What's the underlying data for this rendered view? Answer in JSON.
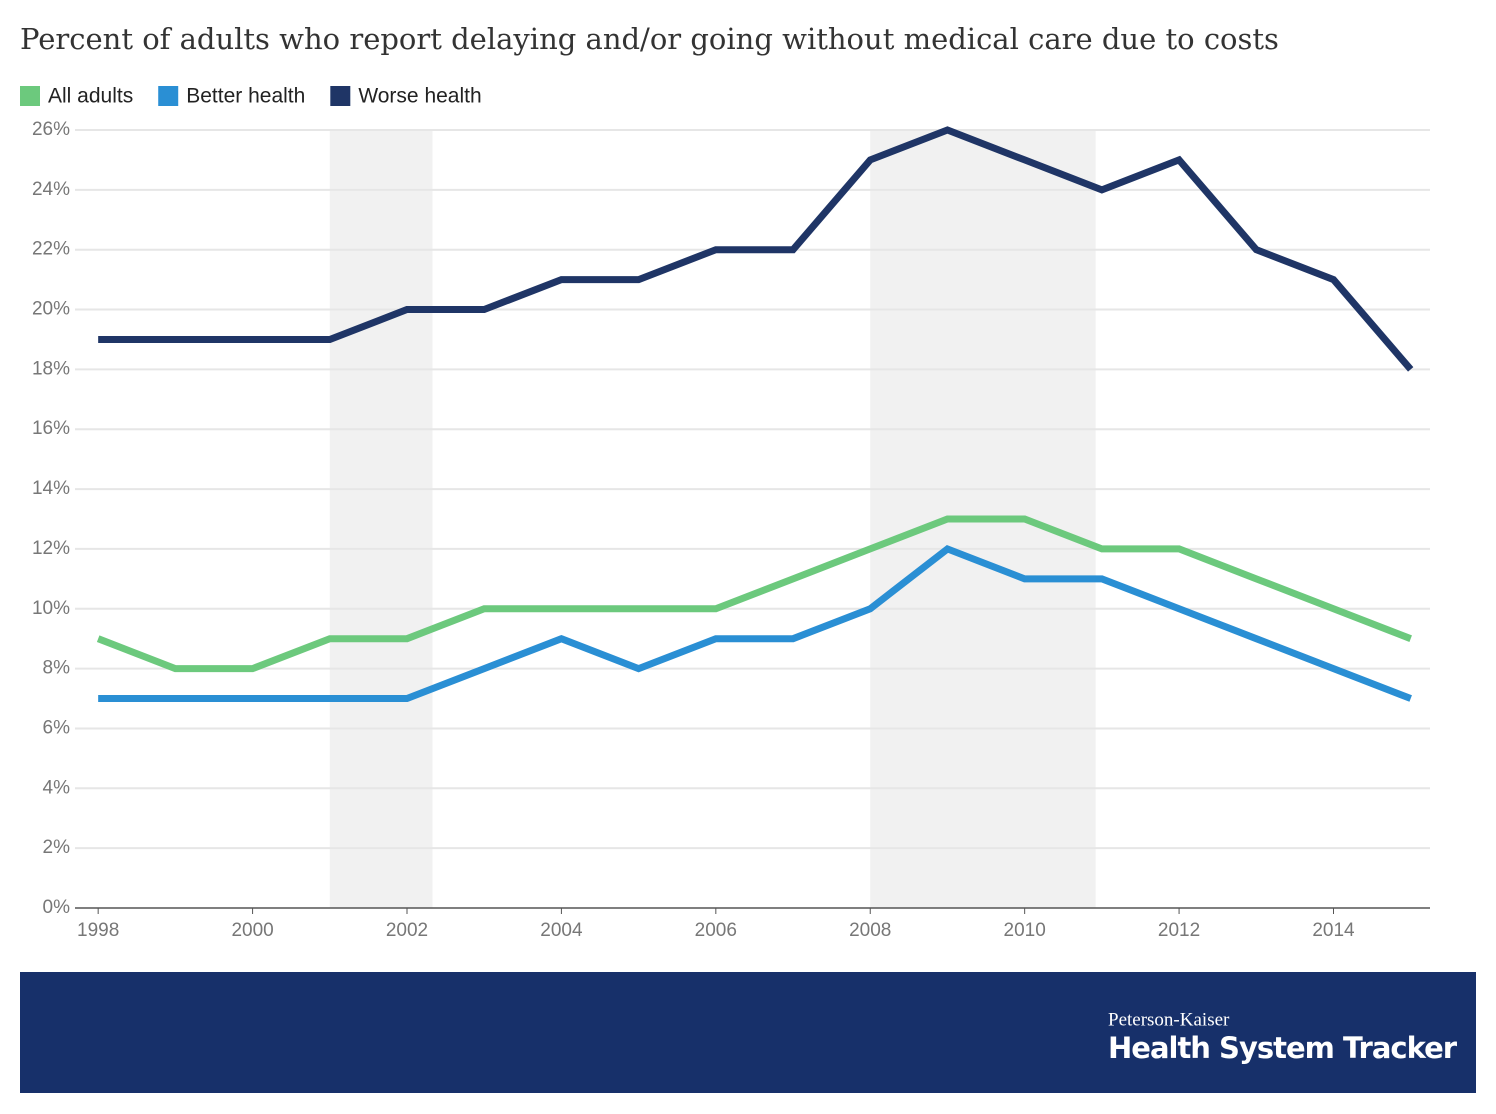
{
  "chart_data": {
    "type": "line",
    "title": "Percent of adults who report delaying and/or going without medical care due to costs",
    "x": [
      1998,
      1999,
      2000,
      2001,
      2002,
      2003,
      2004,
      2005,
      2006,
      2007,
      2008,
      2009,
      2010,
      2011,
      2012,
      2013,
      2014,
      2015
    ],
    "series": [
      {
        "name": "All adults",
        "color": "#6cc97d",
        "values": [
          9,
          8,
          8,
          9,
          9,
          10,
          10,
          10,
          10,
          11,
          12,
          13,
          13,
          12,
          12,
          11,
          10,
          9
        ]
      },
      {
        "name": "Better health",
        "color": "#2a8fd4",
        "values": [
          7,
          7,
          7,
          7,
          7,
          8,
          9,
          8,
          9,
          9,
          10,
          12,
          11,
          11,
          10,
          9,
          8,
          7
        ]
      },
      {
        "name": "Worse health",
        "color": "#1f3566",
        "values": [
          19,
          19,
          19,
          19,
          20,
          20,
          21,
          21,
          22,
          22,
          25,
          26,
          25,
          24,
          25,
          22,
          21,
          18
        ]
      }
    ],
    "shaded_spans": [
      [
        2001,
        2002.33
      ],
      [
        2008,
        2010.92
      ]
    ],
    "xlim": [
      1997.7,
      2015.25
    ],
    "xticks": [
      1998,
      2000,
      2002,
      2004,
      2006,
      2008,
      2010,
      2012,
      2014
    ],
    "ylim": [
      0,
      26
    ],
    "yticks": [
      {
        "value": 0,
        "label": "0%"
      },
      {
        "value": 2,
        "label": "2%"
      },
      {
        "value": 4,
        "label": "4%"
      },
      {
        "value": 6,
        "label": "6%"
      },
      {
        "value": 8,
        "label": "8%"
      },
      {
        "value": 10,
        "label": "10%"
      },
      {
        "value": 12,
        "label": "12%"
      },
      {
        "value": 14,
        "label": "14%"
      },
      {
        "value": 16,
        "label": "16%"
      },
      {
        "value": 18,
        "label": "18%"
      },
      {
        "value": 20,
        "label": "20%"
      },
      {
        "value": 22,
        "label": "22%"
      },
      {
        "value": 24,
        "label": "24%"
      },
      {
        "value": 26,
        "label": "26%"
      }
    ],
    "grid": true
  },
  "footer": {
    "line1": "Peterson-Kaiser",
    "line2": "Health System Tracker"
  }
}
